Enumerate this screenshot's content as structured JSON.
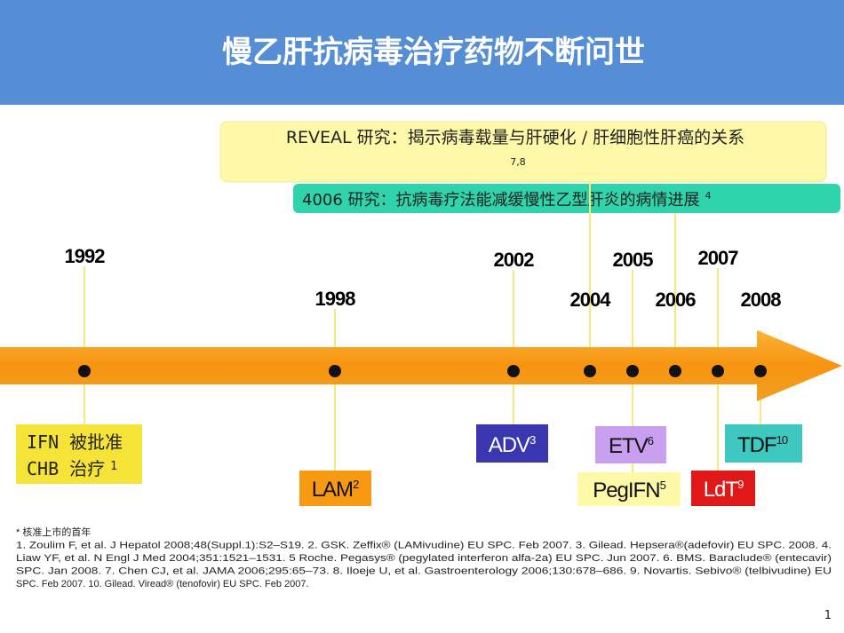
{
  "header": {
    "title": "慢乙肝抗病毒治疗药物不断问世"
  },
  "callouts": [
    {
      "text": "REVEAL 研究：揭示病毒载量与肝硬化 / 肝细胞性肝癌的关系",
      "ref": "7,8"
    },
    {
      "text": "4006 研究：抗病毒疗法能减缓慢性乙型肝炎的病情进展",
      "ref": "4"
    }
  ],
  "years": [
    "1992",
    "1998",
    "2002",
    "2004",
    "2005",
    "2006",
    "2007",
    "2008"
  ],
  "drugs": [
    {
      "lines": [
        "IFN 被批准",
        "CHB 治疗"
      ],
      "ref": "1"
    },
    {
      "lines": [
        "LAM"
      ],
      "ref": "2"
    },
    {
      "lines": [
        "ADV"
      ],
      "ref": "3"
    },
    {
      "lines": [
        "ETV"
      ],
      "ref": "6"
    },
    {
      "lines": [
        "PegIFN"
      ],
      "ref": "5"
    },
    {
      "lines": [
        "LdT"
      ],
      "ref": "9"
    },
    {
      "lines": [
        "TDF"
      ],
      "ref": "10"
    }
  ],
  "footnote": [
    "* 核准上市的首年",
    "1. Zoulim F, et al. J Hepatol 2008;48(Suppl.1):S2–S19. 2. GSK. Zeffix® (LAMivudine) EU SPC. Feb 2007. 3. Gilead. Hepsera®(adefovir) EU SPC. 2008. 4.",
    "Liaw YF, et al. N Engl J Med 2004;351:1521–1531. 5 Roche. Pegasys® (pegylated interferon alfa-2a) EU SPC. Jun 2007. 6. BMS. Baraclude® (entecavir)",
    "SPC. Jan 2008. 7. Chen CJ, et al. JAMA 2006;295:65–73. 8. Iloeje U, et al. Gastroenterology 2006;130:678–686. 9. Novartis. Sebivo® (telbivudine) EU",
    "SPC. Feb 2007. 10. Gilead. Viread® (tenofovir) EU SPC. Feb 2007."
  ],
  "page_number": "1"
}
